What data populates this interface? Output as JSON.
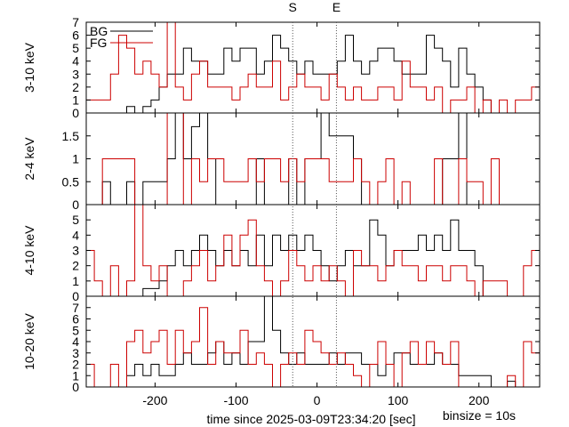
{
  "chart_data": {
    "type": "line",
    "step": true,
    "xlabel": "time since 2025-03-09T23:34:20 [sec]",
    "binsize_label": "binsize = 10s",
    "xlim": [
      -285,
      275
    ],
    "xticks": [
      -200,
      -100,
      0,
      100,
      200
    ],
    "xtick_labels": [
      "-200",
      "-100",
      "0",
      "100",
      "200"
    ],
    "markers": [
      {
        "label": "S",
        "x": -30
      },
      {
        "label": "E",
        "x": 24
      }
    ],
    "legend": [
      {
        "name": "BG",
        "color": "#000000"
      },
      {
        "name": "FG",
        "color": "#cc0000"
      }
    ],
    "bin_edges": [
      -285,
      -275,
      -265,
      -255,
      -245,
      -235,
      -225,
      -215,
      -205,
      -195,
      -185,
      -175,
      -165,
      -155,
      -145,
      -135,
      -125,
      -115,
      -105,
      -95,
      -85,
      -75,
      -65,
      -55,
      -45,
      -35,
      -25,
      -15,
      -5,
      5,
      15,
      25,
      35,
      45,
      55,
      65,
      75,
      85,
      95,
      105,
      115,
      125,
      135,
      145,
      155,
      165,
      175,
      185,
      195,
      205,
      215,
      225,
      235,
      245,
      255,
      265,
      275
    ],
    "panels": [
      {
        "ylabel": "3-10 keV",
        "ylim": [
          0,
          7
        ],
        "yticks": [
          0,
          1,
          2,
          3,
          4,
          5,
          6,
          7
        ],
        "ytick_labels": [
          "0",
          "1",
          "2",
          "3",
          "4",
          "5",
          "6",
          "7"
        ],
        "series": [
          {
            "name": "BG",
            "color": "#000000",
            "values": [
              0,
              0,
              0,
              0,
              0,
              0.5,
              0,
              0.5,
              1,
              2,
              3,
              3,
              5,
              4,
              4,
              3,
              3,
              5,
              4,
              5,
              5,
              3,
              4,
              6,
              5,
              4,
              3,
              4,
              3,
              3,
              3,
              4,
              6,
              4,
              3,
              4,
              5,
              5,
              4,
              3,
              3,
              3,
              6,
              5,
              4,
              2,
              5,
              3,
              2,
              1,
              0,
              0,
              0,
              0,
              0,
              0
            ]
          },
          {
            "name": "FG",
            "color": "#cc0000",
            "values": [
              1,
              1,
              1,
              3,
              6,
              5,
              3,
              4,
              3,
              2,
              7,
              2,
              1,
              3,
              4,
              2,
              2,
              2,
              1,
              2,
              3,
              2,
              2,
              4,
              1,
              2,
              3,
              2,
              2,
              1,
              3,
              2,
              1,
              2,
              1,
              1,
              2,
              2,
              1,
              4,
              2,
              2,
              1,
              2,
              0,
              1,
              1,
              2,
              0,
              1,
              0,
              1,
              0,
              1,
              1,
              2
            ]
          }
        ]
      },
      {
        "ylabel": "2-4 keV",
        "ylim": [
          0,
          2
        ],
        "yticks": [
          0,
          0.5,
          1,
          1.5
        ],
        "ytick_labels": [
          "0",
          "0.5",
          "1",
          "1.5"
        ],
        "series": [
          {
            "name": "BG",
            "color": "#000000",
            "values": [
              0,
              0,
              0.5,
              0,
              0,
              0.5,
              0,
              0.5,
              0.5,
              0.5,
              1,
              2,
              1,
              1.7,
              2,
              1,
              0,
              0,
              0,
              0,
              0,
              1,
              0,
              0,
              0,
              1,
              0,
              1,
              1,
              2,
              1.5,
              1.5,
              1.5,
              1,
              0,
              0,
              0,
              0,
              0,
              0,
              0,
              0,
              0,
              0,
              1,
              1,
              2,
              0,
              0,
              0,
              0,
              0,
              0,
              0,
              0,
              0
            ]
          },
          {
            "name": "FG",
            "color": "#cc0000",
            "values": [
              0,
              0,
              1,
              1,
              1,
              1,
              0,
              0,
              0,
              0,
              2,
              2,
              0,
              1,
              0.5,
              1,
              1,
              0.5,
              0.5,
              0.5,
              1,
              0.5,
              1,
              1,
              0.5,
              1,
              0.5,
              1,
              1,
              1,
              0.5,
              0.5,
              0.5,
              1,
              0.5,
              0,
              0.5,
              1,
              0,
              0.5,
              0,
              0,
              0,
              1,
              0,
              0,
              1,
              0.5,
              0.5,
              0,
              1,
              0,
              0,
              0,
              0,
              0
            ]
          }
        ]
      },
      {
        "ylabel": "4-10 keV",
        "ylim": [
          0,
          6
        ],
        "yticks": [
          0,
          1,
          2,
          3,
          4,
          5
        ],
        "ytick_labels": [
          "0",
          "1",
          "2",
          "3",
          "4",
          "5"
        ],
        "series": [
          {
            "name": "BG",
            "color": "#000000",
            "values": [
              0,
              0,
              0,
              0,
              0,
              0,
              0,
              0.5,
              0.5,
              1,
              2,
              3,
              2,
              3,
              4,
              3,
              2,
              3,
              2,
              3,
              2,
              4,
              2,
              4,
              3,
              4,
              3,
              4,
              3,
              2,
              1,
              2,
              3,
              2,
              2,
              5,
              4,
              2,
              3,
              3,
              3,
              4,
              3,
              4,
              3,
              5,
              3,
              3,
              2,
              0,
              0,
              0,
              0,
              0,
              0,
              0
            ]
          },
          {
            "name": "FG",
            "color": "#cc0000",
            "values": [
              3,
              1,
              0,
              2,
              0,
              1,
              6,
              2,
              1,
              2,
              0,
              0,
              1,
              2,
              3,
              1,
              2,
              4,
              2,
              4,
              5,
              2,
              1,
              0,
              1,
              3,
              2,
              1,
              2,
              1,
              2,
              1,
              0,
              3,
              2,
              2,
              1,
              2,
              3,
              2,
              2,
              1,
              2,
              2,
              1,
              2,
              2,
              1,
              0,
              1,
              1,
              1,
              0,
              0,
              2,
              3
            ]
          }
        ]
      },
      {
        "ylabel": "10-20 keV",
        "ylim": [
          0,
          8
        ],
        "yticks": [
          0,
          1,
          2,
          3,
          4,
          5,
          6,
          7
        ],
        "ytick_labels": [
          "0",
          "1",
          "2",
          "3",
          "4",
          "5",
          "6",
          "7"
        ],
        "series": [
          {
            "name": "BG",
            "color": "#000000",
            "values": [
              0,
              0,
              0,
              0,
              0,
              1,
              2,
              1,
              2,
              1,
              1,
              2,
              3,
              2,
              2,
              3,
              4,
              2,
              3,
              2,
              4,
              4,
              8,
              5,
              3,
              2,
              3,
              2,
              2,
              2,
              3,
              2,
              3,
              3,
              2,
              2,
              1,
              2,
              3,
              3,
              2,
              2,
              2,
              3,
              2,
              2,
              1,
              1,
              1,
              1,
              0,
              0,
              0.5,
              0,
              0,
              0
            ]
          },
          {
            "name": "FG",
            "color": "#cc0000",
            "values": [
              2,
              0,
              0,
              2,
              0,
              4,
              5,
              3,
              4,
              5,
              2,
              5,
              3,
              4,
              7,
              2,
              4,
              3,
              3,
              5,
              2,
              3,
              2,
              0,
              2,
              3,
              2,
              5,
              4,
              3,
              2,
              3,
              2,
              1,
              0,
              2,
              4,
              2,
              0,
              3,
              4,
              2,
              4,
              3,
              2,
              4,
              0,
              0,
              0,
              0,
              0,
              0,
              1,
              0,
              4,
              3
            ]
          }
        ]
      }
    ]
  }
}
